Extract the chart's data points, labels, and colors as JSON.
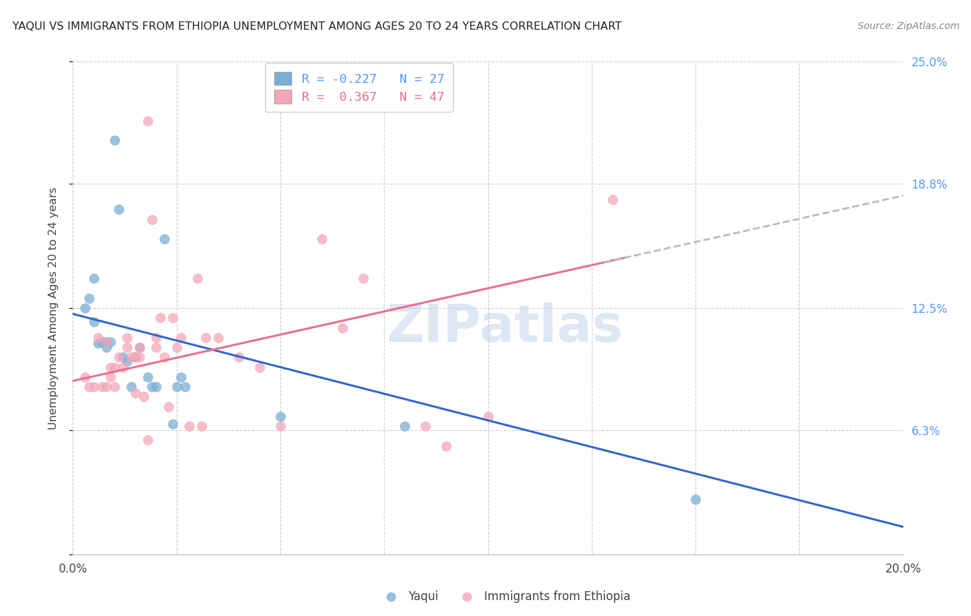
{
  "title": "YAQUI VS IMMIGRANTS FROM ETHIOPIA UNEMPLOYMENT AMONG AGES 20 TO 24 YEARS CORRELATION CHART",
  "source": "Source: ZipAtlas.com",
  "ylabel": "Unemployment Among Ages 20 to 24 years",
  "xlim": [
    0.0,
    0.2
  ],
  "ylim": [
    0.0,
    0.25
  ],
  "xticks": [
    0.0,
    0.025,
    0.05,
    0.075,
    0.1,
    0.125,
    0.15,
    0.175,
    0.2
  ],
  "xtick_labels": [
    "0.0%",
    "",
    "",
    "",
    "",
    "",
    "",
    "",
    "20.0%"
  ],
  "yticks": [
    0.0,
    0.063,
    0.125,
    0.188,
    0.25
  ],
  "ytick_labels_right": [
    "",
    "6.3%",
    "12.5%",
    "18.8%",
    "25.0%"
  ],
  "legend1_label": "Yaqui",
  "legend2_label": "Immigrants from Ethiopia",
  "r1": -0.227,
  "n1": 27,
  "r2": 0.367,
  "n2": 47,
  "color_blue": "#7BAFD4",
  "color_pink": "#F4A7B9",
  "color_line_blue": "#3366CC",
  "color_line_pink": "#E8708A",
  "color_line_dashed": "#BBBBBB",
  "watermark": "ZIPatlas",
  "blue_intercept": 0.122,
  "blue_slope": -0.54,
  "pink_intercept": 0.088,
  "pink_slope": 0.47,
  "blue_x": [
    0.003,
    0.004,
    0.005,
    0.005,
    0.006,
    0.007,
    0.008,
    0.008,
    0.009,
    0.01,
    0.011,
    0.012,
    0.013,
    0.014,
    0.015,
    0.016,
    0.018,
    0.019,
    0.02,
    0.022,
    0.024,
    0.025,
    0.026,
    0.027,
    0.05,
    0.08,
    0.15
  ],
  "blue_y": [
    0.125,
    0.13,
    0.118,
    0.14,
    0.107,
    0.108,
    0.108,
    0.105,
    0.108,
    0.21,
    0.175,
    0.1,
    0.098,
    0.085,
    0.1,
    0.105,
    0.09,
    0.085,
    0.085,
    0.16,
    0.066,
    0.085,
    0.09,
    0.085,
    0.07,
    0.065,
    0.028
  ],
  "pink_x": [
    0.003,
    0.004,
    0.005,
    0.006,
    0.007,
    0.008,
    0.008,
    0.009,
    0.009,
    0.01,
    0.01,
    0.011,
    0.012,
    0.013,
    0.013,
    0.014,
    0.015,
    0.015,
    0.016,
    0.016,
    0.017,
    0.018,
    0.018,
    0.019,
    0.02,
    0.02,
    0.021,
    0.022,
    0.023,
    0.024,
    0.025,
    0.026,
    0.028,
    0.03,
    0.031,
    0.032,
    0.035,
    0.04,
    0.045,
    0.05,
    0.06,
    0.065,
    0.07,
    0.085,
    0.09,
    0.1,
    0.13
  ],
  "pink_y": [
    0.09,
    0.085,
    0.085,
    0.11,
    0.085,
    0.085,
    0.108,
    0.095,
    0.09,
    0.095,
    0.085,
    0.1,
    0.095,
    0.11,
    0.105,
    0.1,
    0.1,
    0.082,
    0.1,
    0.105,
    0.08,
    0.058,
    0.22,
    0.17,
    0.105,
    0.11,
    0.12,
    0.1,
    0.075,
    0.12,
    0.105,
    0.11,
    0.065,
    0.14,
    0.065,
    0.11,
    0.11,
    0.1,
    0.095,
    0.065,
    0.16,
    0.115,
    0.14,
    0.065,
    0.055,
    0.07,
    0.18
  ]
}
